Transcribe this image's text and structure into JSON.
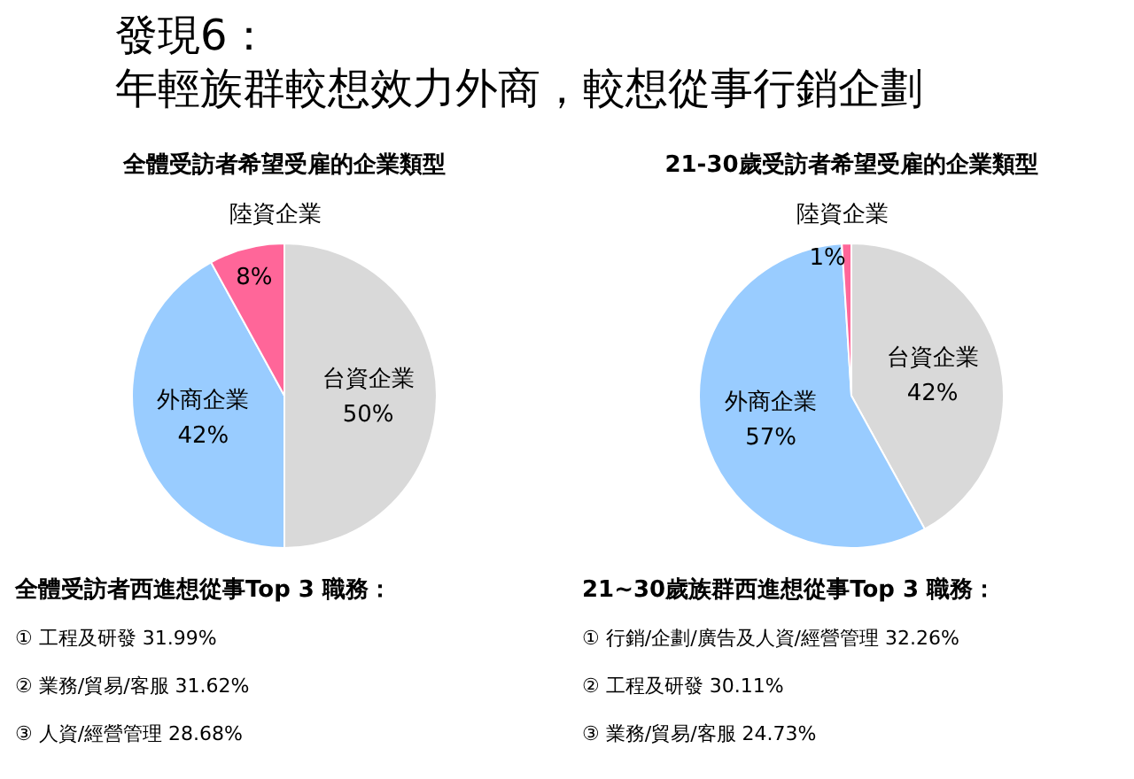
{
  "chart_data": [
    {
      "type": "pie",
      "title": "發現6：",
      "subtitle": "年輕族群較想效力外商，較想從事行銷企劃",
      "categories": [
        "台資企業",
        "外商企業",
        "陸資企業"
      ],
      "values": [
        50,
        42,
        8
      ],
      "colors": [
        "#d9d9d9",
        "#99ccff",
        "#ff6699"
      ],
      "value_labels": [
        "50%",
        "42%",
        "8%"
      ],
      "annotations": [
        "全體受訪者希望受雇的企業類型",
        "全體受訪者西進想從事Top 3 職務：",
        "①  工程及研發  31.99%",
        "②  業務/貿易/客服  31.62%",
        "③  人資/經營管理  28.68%"
      ]
    },
    {
      "type": "pie",
      "title": "21-30歲受訪者希望受雇的企業類型",
      "categories": [
        "台資企業",
        "外商企業",
        "陸資企業"
      ],
      "values": [
        42,
        57,
        1
      ],
      "colors": [
        "#d9d9d9",
        "#99ccff",
        "#ff6699"
      ],
      "value_labels": [
        "42%",
        "57%",
        "1%"
      ],
      "annotations": [
        "21~30歲族群西進想從事Top 3 職務：",
        "①  行銷/企劃/廣告及人資/經營管理  32.26%",
        "②  工程及研發  30.11%",
        "③  業務/貿易/客服  24.73%"
      ]
    }
  ]
}
